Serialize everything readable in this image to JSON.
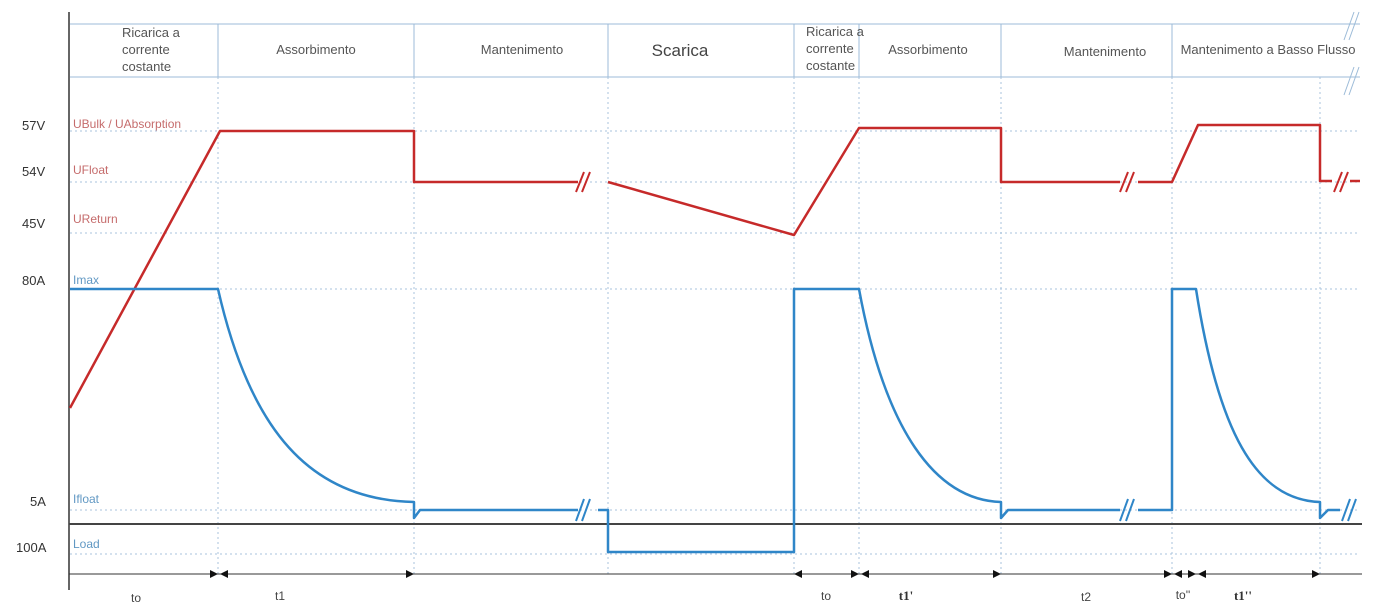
{
  "phases": [
    {
      "id": "cc1",
      "lines": [
        "Ricarica a",
        "corrente",
        "costante"
      ]
    },
    {
      "id": "abs1",
      "label": "Assorbimento"
    },
    {
      "id": "mant1",
      "label": "Mantenimento"
    },
    {
      "id": "scarica",
      "label": "Scarica"
    },
    {
      "id": "cc2",
      "lines": [
        "Ricarica a",
        "corrente",
        "costante"
      ]
    },
    {
      "id": "abs2",
      "label": "Assorbimento"
    },
    {
      "id": "mant2",
      "label": "Mantenimento"
    },
    {
      "id": "lowflow",
      "label": "Mantenimento a Basso Flusso"
    }
  ],
  "levels": {
    "v57": "57V",
    "v54": "54V",
    "v45": "45V",
    "a80": "80A",
    "a5": "5A",
    "a100": "100A"
  },
  "names": {
    "ubulk": "UBulk / UAbsorption",
    "ufloat": "UFloat",
    "ureturn": "UReturn",
    "imax": "Imax",
    "ifloat": "Ifloat",
    "load": "Load"
  },
  "time_labels": {
    "to1": "to",
    "t1": "t1",
    "to2": "to",
    "t1p": "t1'",
    "t2": "t2",
    "to3": "to''",
    "t1pp": "t1''"
  },
  "colors": {
    "voltage": "#c62a2a",
    "current": "#2f86c8",
    "grid": "#a9c3dc"
  }
}
